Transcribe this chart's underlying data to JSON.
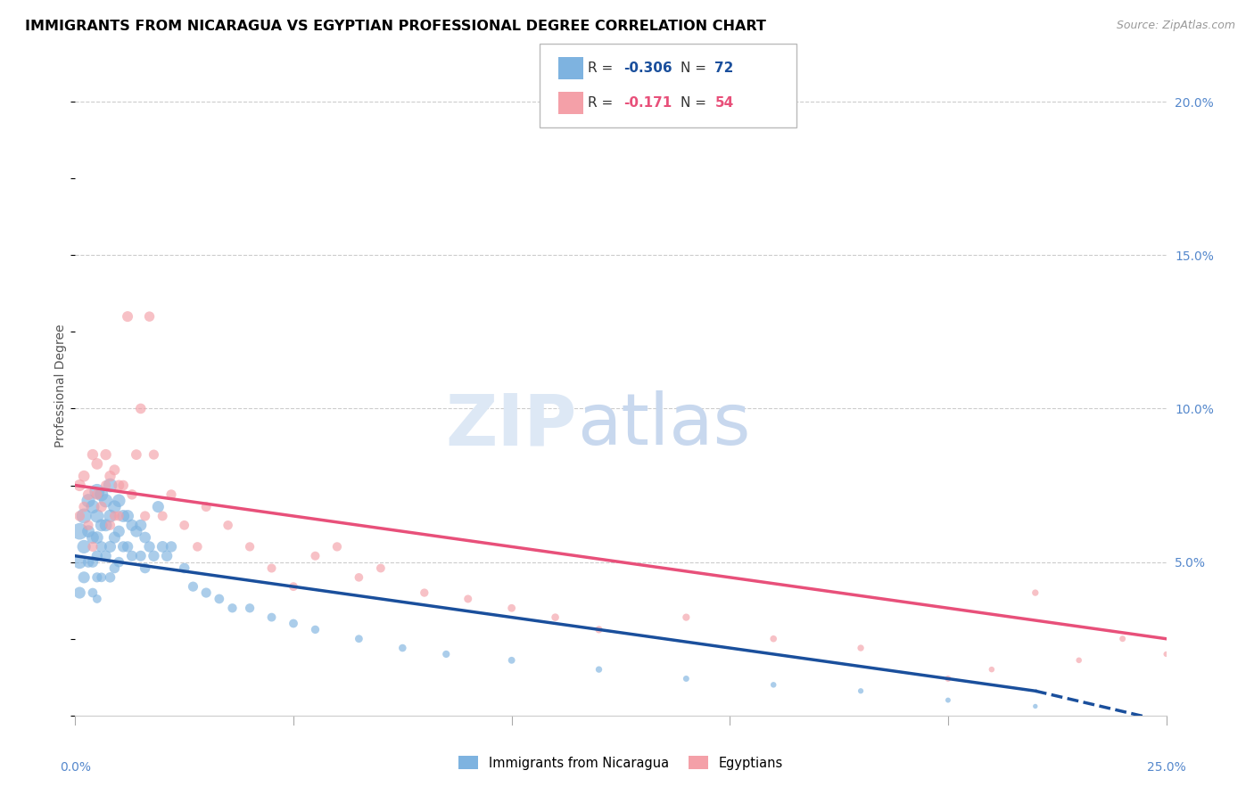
{
  "title": "IMMIGRANTS FROM NICARAGUA VS EGYPTIAN PROFESSIONAL DEGREE CORRELATION CHART",
  "source": "Source: ZipAtlas.com",
  "ylabel": "Professional Degree",
  "right_ytick_vals": [
    0.05,
    0.1,
    0.15,
    0.2
  ],
  "right_ytick_labels": [
    "5.0%",
    "10.0%",
    "15.0%",
    "20.0%"
  ],
  "legend_label1": "Immigrants from Nicaragua",
  "legend_label2": "Egyptians",
  "r1": -0.306,
  "n1": 72,
  "r2": -0.171,
  "n2": 54,
  "color1": "#7EB3E0",
  "color2": "#F4A0A8",
  "trend_color1": "#1A4F9C",
  "trend_color2": "#E8507A",
  "xlim": [
    0.0,
    0.25
  ],
  "ylim": [
    0.0,
    0.215
  ],
  "nic_trend_y0": 0.052,
  "nic_trend_y_at_max": 0.008,
  "nic_trend_xmax": 0.22,
  "nic_trend_xend": 0.25,
  "nic_trend_yend": -0.002,
  "egy_trend_y0": 0.075,
  "egy_trend_y_at_end": 0.025,
  "egy_trend_xend": 0.25,
  "nicaragua_x": [
    0.001,
    0.001,
    0.001,
    0.002,
    0.002,
    0.002,
    0.003,
    0.003,
    0.003,
    0.004,
    0.004,
    0.004,
    0.004,
    0.005,
    0.005,
    0.005,
    0.005,
    0.005,
    0.005,
    0.006,
    0.006,
    0.006,
    0.006,
    0.007,
    0.007,
    0.007,
    0.008,
    0.008,
    0.008,
    0.008,
    0.009,
    0.009,
    0.009,
    0.01,
    0.01,
    0.01,
    0.011,
    0.011,
    0.012,
    0.012,
    0.013,
    0.013,
    0.014,
    0.015,
    0.015,
    0.016,
    0.016,
    0.017,
    0.018,
    0.019,
    0.02,
    0.021,
    0.022,
    0.025,
    0.027,
    0.03,
    0.033,
    0.036,
    0.04,
    0.045,
    0.05,
    0.055,
    0.065,
    0.075,
    0.085,
    0.1,
    0.12,
    0.14,
    0.16,
    0.18,
    0.2,
    0.22
  ],
  "nicaragua_y": [
    0.06,
    0.05,
    0.04,
    0.065,
    0.055,
    0.045,
    0.07,
    0.06,
    0.05,
    0.068,
    0.058,
    0.05,
    0.04,
    0.073,
    0.065,
    0.058,
    0.052,
    0.045,
    0.038,
    0.072,
    0.062,
    0.055,
    0.045,
    0.07,
    0.062,
    0.052,
    0.075,
    0.065,
    0.055,
    0.045,
    0.068,
    0.058,
    0.048,
    0.07,
    0.06,
    0.05,
    0.065,
    0.055,
    0.065,
    0.055,
    0.062,
    0.052,
    0.06,
    0.062,
    0.052,
    0.058,
    0.048,
    0.055,
    0.052,
    0.068,
    0.055,
    0.052,
    0.055,
    0.048,
    0.042,
    0.04,
    0.038,
    0.035,
    0.035,
    0.032,
    0.03,
    0.028,
    0.025,
    0.022,
    0.02,
    0.018,
    0.015,
    0.012,
    0.01,
    0.008,
    0.005,
    0.003
  ],
  "nicaragua_size": [
    180,
    120,
    90,
    150,
    120,
    90,
    120,
    100,
    80,
    120,
    100,
    80,
    60,
    150,
    120,
    100,
    80,
    65,
    50,
    120,
    100,
    80,
    60,
    120,
    100,
    80,
    130,
    110,
    90,
    70,
    110,
    90,
    70,
    110,
    90,
    70,
    100,
    80,
    100,
    80,
    90,
    75,
    90,
    90,
    75,
    85,
    70,
    80,
    80,
    90,
    85,
    80,
    80,
    70,
    65,
    65,
    60,
    55,
    55,
    50,
    50,
    45,
    40,
    38,
    35,
    32,
    28,
    25,
    22,
    20,
    18,
    15
  ],
  "egypt_x": [
    0.001,
    0.001,
    0.002,
    0.002,
    0.003,
    0.003,
    0.004,
    0.004,
    0.005,
    0.005,
    0.006,
    0.007,
    0.007,
    0.008,
    0.008,
    0.009,
    0.009,
    0.01,
    0.01,
    0.011,
    0.012,
    0.013,
    0.014,
    0.015,
    0.016,
    0.017,
    0.018,
    0.02,
    0.022,
    0.025,
    0.028,
    0.03,
    0.035,
    0.04,
    0.045,
    0.05,
    0.055,
    0.06,
    0.065,
    0.07,
    0.08,
    0.09,
    0.1,
    0.11,
    0.12,
    0.14,
    0.16,
    0.18,
    0.2,
    0.21,
    0.22,
    0.23,
    0.24,
    0.25
  ],
  "egypt_y": [
    0.075,
    0.065,
    0.078,
    0.068,
    0.072,
    0.062,
    0.085,
    0.055,
    0.082,
    0.072,
    0.068,
    0.085,
    0.075,
    0.078,
    0.062,
    0.08,
    0.065,
    0.075,
    0.065,
    0.075,
    0.13,
    0.072,
    0.085,
    0.1,
    0.065,
    0.13,
    0.085,
    0.065,
    0.072,
    0.062,
    0.055,
    0.068,
    0.062,
    0.055,
    0.048,
    0.042,
    0.052,
    0.055,
    0.045,
    0.048,
    0.04,
    0.038,
    0.035,
    0.032,
    0.028,
    0.032,
    0.025,
    0.022,
    0.012,
    0.015,
    0.04,
    0.018,
    0.025,
    0.02
  ],
  "egypt_size": [
    90,
    70,
    85,
    70,
    80,
    65,
    80,
    65,
    85,
    70,
    75,
    80,
    65,
    80,
    65,
    75,
    62,
    75,
    62,
    70,
    75,
    68,
    72,
    70,
    65,
    68,
    65,
    62,
    65,
    60,
    58,
    62,
    58,
    55,
    52,
    50,
    52,
    55,
    48,
    50,
    45,
    42,
    40,
    38,
    35,
    35,
    30,
    28,
    25,
    22,
    28,
    22,
    25,
    20
  ]
}
